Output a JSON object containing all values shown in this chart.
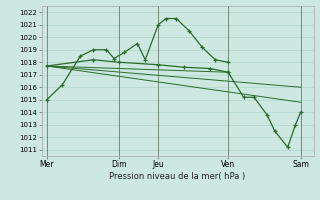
{
  "xlabel": "Pression niveau de la mer( hPa )",
  "bg_color": "#cce8e0",
  "grid_color": "#aad4c8",
  "line_color": "#2d6a2d",
  "ylim": [
    1010.5,
    1022.5
  ],
  "yticks": [
    1011,
    1012,
    1013,
    1014,
    1015,
    1016,
    1017,
    1018,
    1019,
    1020,
    1021,
    1022
  ],
  "xlim": [
    0,
    10.5
  ],
  "xtick_labels": [
    "Mer",
    "Dim",
    "Jeu",
    "Ven",
    "Sam"
  ],
  "xtick_positions": [
    0.2,
    3.0,
    4.5,
    7.2,
    10.0
  ],
  "vline_positions": [
    0.2,
    3.0,
    4.5,
    7.2,
    10.0
  ],
  "series1_x": [
    0.2,
    0.8,
    1.5,
    2.0,
    2.5,
    2.8,
    3.2,
    3.7,
    4.0,
    4.5,
    4.8,
    5.2,
    5.7,
    6.2,
    6.7,
    7.2
  ],
  "series1_y": [
    1015.0,
    1016.2,
    1018.5,
    1019.0,
    1019.0,
    1018.3,
    1018.8,
    1019.5,
    1018.2,
    1021.0,
    1021.5,
    1021.5,
    1020.5,
    1019.2,
    1018.2,
    1018.0
  ],
  "series2_x": [
    0.2,
    2.0,
    3.0,
    4.5,
    5.5,
    6.5,
    7.2
  ],
  "series2_y": [
    1017.7,
    1018.2,
    1018.0,
    1017.8,
    1017.6,
    1017.5,
    1017.2
  ],
  "series3_x": [
    7.2,
    7.8,
    8.2,
    8.7,
    9.0,
    9.5,
    9.8,
    10.0
  ],
  "series3_y": [
    1017.2,
    1015.2,
    1015.2,
    1013.8,
    1012.5,
    1011.2,
    1013.0,
    1014.0
  ],
  "trend1_x": [
    0.2,
    7.2
  ],
  "trend1_y": [
    1017.7,
    1017.2
  ],
  "trend2_x": [
    0.2,
    10.0
  ],
  "trend2_y": [
    1017.7,
    1016.0
  ],
  "trend3_x": [
    0.2,
    10.0
  ],
  "trend3_y": [
    1017.7,
    1014.8
  ]
}
